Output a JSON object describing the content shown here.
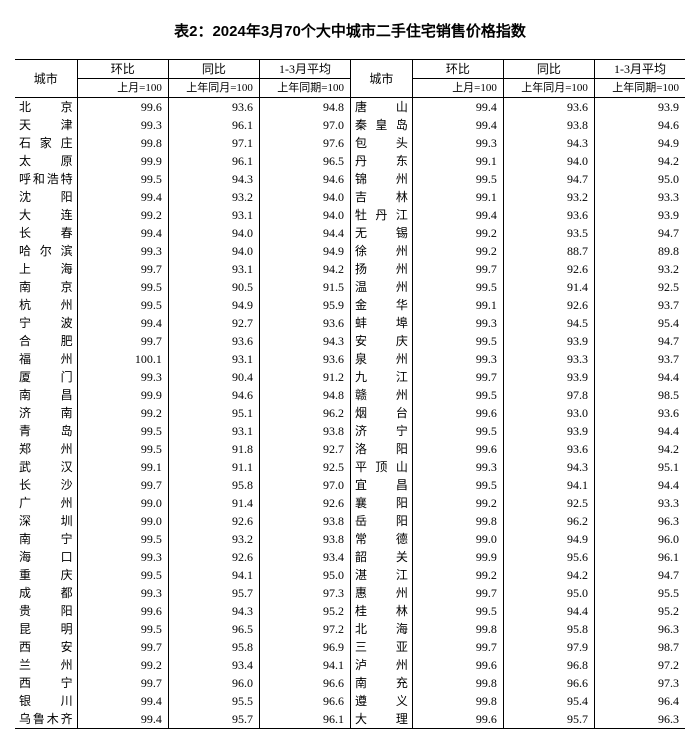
{
  "title": "表2：2024年3月70个大中城市二手住宅销售价格指数",
  "headers": {
    "city": "城市",
    "mom": "环比",
    "yoy": "同比",
    "avg": "1-3月平均",
    "mom_sub": "上月=100",
    "yoy_sub": "上年同月=100",
    "avg_sub": "上年同期=100"
  },
  "left": [
    {
      "city": "北京",
      "mom": "99.6",
      "yoy": "93.6",
      "avg": "94.8"
    },
    {
      "city": "天津",
      "mom": "99.3",
      "yoy": "96.1",
      "avg": "97.0"
    },
    {
      "city": "石家庄",
      "mom": "99.8",
      "yoy": "97.1",
      "avg": "97.6"
    },
    {
      "city": "太原",
      "mom": "99.9",
      "yoy": "96.1",
      "avg": "96.5"
    },
    {
      "city": "呼和浩特",
      "mom": "99.5",
      "yoy": "94.3",
      "avg": "94.6"
    },
    {
      "city": "沈阳",
      "mom": "99.4",
      "yoy": "93.2",
      "avg": "94.0"
    },
    {
      "city": "大连",
      "mom": "99.2",
      "yoy": "93.1",
      "avg": "94.0"
    },
    {
      "city": "长春",
      "mom": "99.4",
      "yoy": "94.0",
      "avg": "94.4"
    },
    {
      "city": "哈尔滨",
      "mom": "99.3",
      "yoy": "94.0",
      "avg": "94.9"
    },
    {
      "city": "上海",
      "mom": "99.7",
      "yoy": "93.1",
      "avg": "94.2"
    },
    {
      "city": "南京",
      "mom": "99.5",
      "yoy": "90.5",
      "avg": "91.5"
    },
    {
      "city": "杭州",
      "mom": "99.5",
      "yoy": "94.9",
      "avg": "95.9"
    },
    {
      "city": "宁波",
      "mom": "99.4",
      "yoy": "92.7",
      "avg": "93.6"
    },
    {
      "city": "合肥",
      "mom": "99.7",
      "yoy": "93.6",
      "avg": "94.3"
    },
    {
      "city": "福州",
      "mom": "100.1",
      "yoy": "93.1",
      "avg": "93.6"
    },
    {
      "city": "厦门",
      "mom": "99.3",
      "yoy": "90.4",
      "avg": "91.2"
    },
    {
      "city": "南昌",
      "mom": "99.9",
      "yoy": "94.6",
      "avg": "94.8"
    },
    {
      "city": "济南",
      "mom": "99.2",
      "yoy": "95.1",
      "avg": "96.2"
    },
    {
      "city": "青岛",
      "mom": "99.5",
      "yoy": "93.1",
      "avg": "93.8"
    },
    {
      "city": "郑州",
      "mom": "99.5",
      "yoy": "91.8",
      "avg": "92.7"
    },
    {
      "city": "武汉",
      "mom": "99.1",
      "yoy": "91.1",
      "avg": "92.5"
    },
    {
      "city": "长沙",
      "mom": "99.7",
      "yoy": "95.8",
      "avg": "97.0"
    },
    {
      "city": "广州",
      "mom": "99.0",
      "yoy": "91.4",
      "avg": "92.6"
    },
    {
      "city": "深圳",
      "mom": "99.0",
      "yoy": "92.6",
      "avg": "93.8"
    },
    {
      "city": "南宁",
      "mom": "99.5",
      "yoy": "93.2",
      "avg": "93.8"
    },
    {
      "city": "海口",
      "mom": "99.3",
      "yoy": "92.6",
      "avg": "93.4"
    },
    {
      "city": "重庆",
      "mom": "99.5",
      "yoy": "94.1",
      "avg": "95.0"
    },
    {
      "city": "成都",
      "mom": "99.3",
      "yoy": "95.7",
      "avg": "97.3"
    },
    {
      "city": "贵阳",
      "mom": "99.6",
      "yoy": "94.3",
      "avg": "95.2"
    },
    {
      "city": "昆明",
      "mom": "99.5",
      "yoy": "96.5",
      "avg": "97.2"
    },
    {
      "city": "西安",
      "mom": "99.7",
      "yoy": "95.8",
      "avg": "96.9"
    },
    {
      "city": "兰州",
      "mom": "99.2",
      "yoy": "93.4",
      "avg": "94.1"
    },
    {
      "city": "西宁",
      "mom": "99.7",
      "yoy": "96.0",
      "avg": "96.6"
    },
    {
      "city": "银川",
      "mom": "99.4",
      "yoy": "95.5",
      "avg": "96.6"
    },
    {
      "city": "乌鲁木齐",
      "mom": "99.4",
      "yoy": "95.7",
      "avg": "96.1"
    }
  ],
  "right": [
    {
      "city": "唐山",
      "mom": "99.4",
      "yoy": "93.6",
      "avg": "93.9"
    },
    {
      "city": "秦皇岛",
      "mom": "99.4",
      "yoy": "93.8",
      "avg": "94.6"
    },
    {
      "city": "包头",
      "mom": "99.3",
      "yoy": "94.3",
      "avg": "94.9"
    },
    {
      "city": "丹东",
      "mom": "99.1",
      "yoy": "94.0",
      "avg": "94.2"
    },
    {
      "city": "锦州",
      "mom": "99.5",
      "yoy": "94.7",
      "avg": "95.0"
    },
    {
      "city": "吉林",
      "mom": "99.1",
      "yoy": "93.2",
      "avg": "93.3"
    },
    {
      "city": "牡丹江",
      "mom": "99.4",
      "yoy": "93.6",
      "avg": "93.9"
    },
    {
      "city": "无锡",
      "mom": "99.2",
      "yoy": "93.5",
      "avg": "94.7"
    },
    {
      "city": "徐州",
      "mom": "99.2",
      "yoy": "88.7",
      "avg": "89.8"
    },
    {
      "city": "扬州",
      "mom": "99.7",
      "yoy": "92.6",
      "avg": "93.2"
    },
    {
      "city": "温州",
      "mom": "99.5",
      "yoy": "91.4",
      "avg": "92.5"
    },
    {
      "city": "金华",
      "mom": "99.1",
      "yoy": "92.6",
      "avg": "93.7"
    },
    {
      "city": "蚌埠",
      "mom": "99.3",
      "yoy": "94.5",
      "avg": "95.4"
    },
    {
      "city": "安庆",
      "mom": "99.5",
      "yoy": "93.9",
      "avg": "94.7"
    },
    {
      "city": "泉州",
      "mom": "99.3",
      "yoy": "93.3",
      "avg": "93.7"
    },
    {
      "city": "九江",
      "mom": "99.7",
      "yoy": "93.9",
      "avg": "94.4"
    },
    {
      "city": "赣州",
      "mom": "99.5",
      "yoy": "97.8",
      "avg": "98.5"
    },
    {
      "city": "烟台",
      "mom": "99.6",
      "yoy": "93.0",
      "avg": "93.6"
    },
    {
      "city": "济宁",
      "mom": "99.5",
      "yoy": "93.9",
      "avg": "94.4"
    },
    {
      "city": "洛阳",
      "mom": "99.6",
      "yoy": "93.6",
      "avg": "94.2"
    },
    {
      "city": "平顶山",
      "mom": "99.3",
      "yoy": "94.3",
      "avg": "95.1"
    },
    {
      "city": "宜昌",
      "mom": "99.5",
      "yoy": "94.1",
      "avg": "94.4"
    },
    {
      "city": "襄阳",
      "mom": "99.2",
      "yoy": "92.5",
      "avg": "93.3"
    },
    {
      "city": "岳阳",
      "mom": "99.8",
      "yoy": "96.2",
      "avg": "96.3"
    },
    {
      "city": "常德",
      "mom": "99.0",
      "yoy": "94.9",
      "avg": "96.0"
    },
    {
      "city": "韶关",
      "mom": "99.9",
      "yoy": "95.6",
      "avg": "96.1"
    },
    {
      "city": "湛江",
      "mom": "99.2",
      "yoy": "94.2",
      "avg": "94.7"
    },
    {
      "city": "惠州",
      "mom": "99.7",
      "yoy": "95.0",
      "avg": "95.5"
    },
    {
      "city": "桂林",
      "mom": "99.5",
      "yoy": "94.4",
      "avg": "95.2"
    },
    {
      "city": "北海",
      "mom": "99.8",
      "yoy": "95.8",
      "avg": "96.3"
    },
    {
      "city": "三亚",
      "mom": "99.7",
      "yoy": "97.9",
      "avg": "98.7"
    },
    {
      "city": "泸州",
      "mom": "99.6",
      "yoy": "96.8",
      "avg": "97.2"
    },
    {
      "city": "南充",
      "mom": "99.8",
      "yoy": "96.6",
      "avg": "97.3"
    },
    {
      "city": "遵义",
      "mom": "99.8",
      "yoy": "95.4",
      "avg": "96.4"
    },
    {
      "city": "大理",
      "mom": "99.6",
      "yoy": "95.7",
      "avg": "96.3"
    }
  ]
}
